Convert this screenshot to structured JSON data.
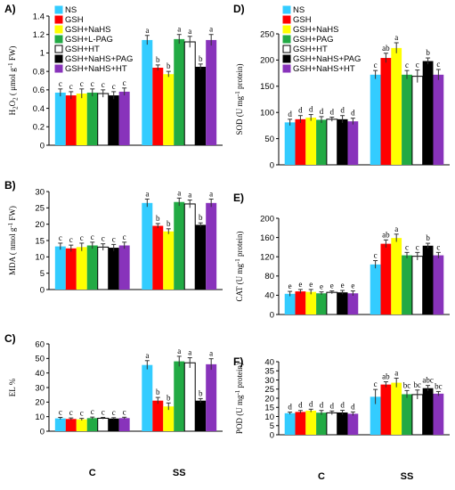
{
  "palette": [
    "#33ccff",
    "#ff0000",
    "#ffff00",
    "#22aa44",
    "#ffffff",
    "#000000",
    "#8833bb"
  ],
  "chart_data": [
    {
      "type": "bar",
      "panel": "A)",
      "ylabel_parts": [
        "H",
        "2",
        "O",
        "2",
        " ( μmol g",
        "-1",
        " FW)"
      ],
      "ylim": [
        0,
        1.4
      ],
      "yticks": [
        0,
        0.2,
        0.4,
        0.6,
        0.8,
        1,
        1.2,
        1.4
      ],
      "categories": [
        "C",
        "SS"
      ],
      "legend": [
        "NS",
        "GSH",
        "GSH+NaHS",
        "GSH+L-PAG",
        "GSH+HT",
        "GSH+NaHS+PAG",
        "GSH+NaHS+HT"
      ],
      "series": [
        {
          "name": "NS",
          "values": [
            0.57,
            1.14
          ],
          "errors": [
            0.04,
            0.05
          ],
          "labels": [
            "c",
            "a"
          ]
        },
        {
          "name": "GSH",
          "values": [
            0.54,
            0.84
          ],
          "errors": [
            0.04,
            0.03
          ],
          "labels": [
            "c",
            "b"
          ]
        },
        {
          "name": "GSH+NaHS",
          "values": [
            0.56,
            0.77
          ],
          "errors": [
            0.05,
            0.03
          ],
          "labels": [
            "c",
            "b"
          ]
        },
        {
          "name": "GSH+L-PAG",
          "values": [
            0.57,
            1.15
          ],
          "errors": [
            0.04,
            0.05
          ],
          "labels": [
            "c",
            "a"
          ]
        },
        {
          "name": "GSH+HT",
          "values": [
            0.56,
            1.12
          ],
          "errors": [
            0.04,
            0.06
          ],
          "labels": [
            "c",
            "a"
          ]
        },
        {
          "name": "GSH+NaHS+PAG",
          "values": [
            0.54,
            0.85
          ],
          "errors": [
            0.04,
            0.03
          ],
          "labels": [
            "c",
            "b"
          ]
        },
        {
          "name": "GSH+NaHS+HT",
          "values": [
            0.58,
            1.14
          ],
          "errors": [
            0.04,
            0.06
          ],
          "labels": [
            "c",
            "a"
          ]
        }
      ]
    },
    {
      "type": "bar",
      "panel": "B)",
      "ylabel_parts": [
        "MDA ( nmol g",
        "-1",
        " FW)"
      ],
      "ylim": [
        0,
        30
      ],
      "yticks": [
        0,
        5,
        10,
        15,
        20,
        25,
        30
      ],
      "categories": [
        "C",
        "SS"
      ],
      "legend": [],
      "series": [
        {
          "name": "NS",
          "values": [
            13.2,
            26.5
          ],
          "errors": [
            1.0,
            1.2
          ],
          "labels": [
            "c",
            "a"
          ]
        },
        {
          "name": "GSH",
          "values": [
            12.6,
            19.5
          ],
          "errors": [
            1.0,
            0.7
          ],
          "labels": [
            "c",
            "b"
          ]
        },
        {
          "name": "GSH+NaHS",
          "values": [
            13.0,
            17.8
          ],
          "errors": [
            1.2,
            0.8
          ],
          "labels": [
            "c",
            "b"
          ]
        },
        {
          "name": "GSH+L-PAG",
          "values": [
            13.5,
            26.8
          ],
          "errors": [
            1.0,
            1.2
          ],
          "labels": [
            "c",
            "a"
          ]
        },
        {
          "name": "GSH+HT",
          "values": [
            13.0,
            26.2
          ],
          "errors": [
            1.0,
            1.2
          ],
          "labels": [
            "c",
            "a"
          ]
        },
        {
          "name": "GSH+NaHS+PAG",
          "values": [
            12.8,
            19.8
          ],
          "errors": [
            1.0,
            0.6
          ],
          "labels": [
            "c",
            "b"
          ]
        },
        {
          "name": "GSH+NaHS+HT",
          "values": [
            13.5,
            26.5
          ],
          "errors": [
            1.0,
            1.2
          ],
          "labels": [
            "c",
            "a"
          ]
        }
      ]
    },
    {
      "type": "bar",
      "panel": "C)",
      "ylabel_parts": [
        "EL %"
      ],
      "ylim": [
        0,
        60
      ],
      "yticks": [
        0,
        10,
        20,
        30,
        40,
        50,
        60
      ],
      "categories": [
        "C",
        "SS"
      ],
      "legend": [],
      "series": [
        {
          "name": "NS",
          "values": [
            8.8,
            45.5
          ],
          "errors": [
            0.7,
            3.0
          ],
          "labels": [
            "c",
            "a"
          ]
        },
        {
          "name": "GSH",
          "values": [
            8.4,
            21.0
          ],
          "errors": [
            0.7,
            2.2
          ],
          "labels": [
            "c",
            "b"
          ]
        },
        {
          "name": "GSH+NaHS",
          "values": [
            8.1,
            17.0
          ],
          "errors": [
            0.7,
            2.4
          ],
          "labels": [
            "c",
            "b"
          ]
        },
        {
          "name": "GSH+L-PAG",
          "values": [
            9.0,
            48.0
          ],
          "errors": [
            0.7,
            3.5
          ],
          "labels": [
            "c",
            "a"
          ]
        },
        {
          "name": "GSH+HT",
          "values": [
            8.9,
            47.0
          ],
          "errors": [
            0.6,
            3.5
          ],
          "labels": [
            "c",
            "a"
          ]
        },
        {
          "name": "GSH+NaHS+PAG",
          "values": [
            8.7,
            21.0
          ],
          "errors": [
            0.6,
            1.4
          ],
          "labels": [
            "c",
            "b"
          ]
        },
        {
          "name": "GSH+NaHS+HT",
          "values": [
            9.0,
            46.0
          ],
          "errors": [
            0.6,
            3.8
          ],
          "labels": [
            "c",
            "a"
          ]
        }
      ]
    },
    {
      "type": "bar",
      "panel": "D)",
      "ylabel_parts": [
        "SOD (U mg",
        "-1",
        " protein)"
      ],
      "ylim": [
        0,
        250
      ],
      "yticks": [
        0,
        50,
        100,
        150,
        200,
        250
      ],
      "categories": [
        "C",
        "SS"
      ],
      "legend": [
        "NS",
        "GSH",
        "GSH+NaHS",
        "GSH+PAG",
        "GSH+HT",
        "GSH+NaHS+PAG",
        "GSH+NaHS+HT"
      ],
      "series": [
        {
          "name": "NS",
          "values": [
            81,
            172
          ],
          "errors": [
            6,
            8
          ],
          "labels": [
            "d",
            "c"
          ]
        },
        {
          "name": "GSH",
          "values": [
            87,
            204
          ],
          "errors": [
            7,
            9
          ],
          "labels": [
            "d",
            "ab"
          ]
        },
        {
          "name": "GSH+NaHS",
          "values": [
            90,
            223
          ],
          "errors": [
            6,
            10
          ],
          "labels": [
            "d",
            "a"
          ]
        },
        {
          "name": "GSH+PAG",
          "values": [
            86,
            172
          ],
          "errors": [
            6,
            8
          ],
          "labels": [
            "d",
            "c"
          ]
        },
        {
          "name": "GSH+HT",
          "values": [
            87,
            169
          ],
          "errors": [
            4,
            12
          ],
          "labels": [
            "d",
            "c"
          ]
        },
        {
          "name": "GSH+NaHS+PAG",
          "values": [
            87,
            198
          ],
          "errors": [
            7,
            6
          ],
          "labels": [
            "d",
            "b"
          ]
        },
        {
          "name": "GSH+NaHS+HT",
          "values": [
            83,
            172
          ],
          "errors": [
            6,
            10
          ],
          "labels": [
            "d",
            "c"
          ]
        }
      ]
    },
    {
      "type": "bar",
      "panel": "E)",
      "ylabel_parts": [
        "CAT (U mg",
        "-1",
        " protein)"
      ],
      "ylim": [
        0,
        200
      ],
      "yticks": [
        0,
        40,
        80,
        120,
        160,
        200
      ],
      "categories": [
        "C",
        "SS"
      ],
      "legend": [],
      "series": [
        {
          "name": "NS",
          "values": [
            43,
            104
          ],
          "errors": [
            5,
            8
          ],
          "labels": [
            "e",
            "c"
          ]
        },
        {
          "name": "GSH",
          "values": [
            48,
            147
          ],
          "errors": [
            4,
            8
          ],
          "labels": [
            "e",
            "ab"
          ]
        },
        {
          "name": "GSH+NaHS",
          "values": [
            47,
            159
          ],
          "errors": [
            5,
            8
          ],
          "labels": [
            "e",
            "a"
          ]
        },
        {
          "name": "GSH+PAG",
          "values": [
            44,
            123
          ],
          "errors": [
            3,
            6
          ],
          "labels": [
            "e",
            "c"
          ]
        },
        {
          "name": "GSH+HT",
          "values": [
            46,
            121
          ],
          "errors": [
            3,
            8
          ],
          "labels": [
            "e",
            "c"
          ]
        },
        {
          "name": "GSH+NaHS+PAG",
          "values": [
            46,
            143
          ],
          "errors": [
            4,
            5
          ],
          "labels": [
            "e",
            "b"
          ]
        },
        {
          "name": "GSH+NaHS+HT",
          "values": [
            44,
            123
          ],
          "errors": [
            5,
            6
          ],
          "labels": [
            "e",
            "c"
          ]
        }
      ]
    },
    {
      "type": "bar",
      "panel": "F)",
      "ylabel_parts": [
        "POD (U mg",
        "-1",
        " protein)"
      ],
      "ylim": [
        0,
        40
      ],
      "yticks": [
        0,
        5,
        10,
        15,
        20,
        25,
        30,
        35,
        40
      ],
      "categories": [
        "C",
        "SS"
      ],
      "legend": [],
      "series": [
        {
          "name": "NS",
          "values": [
            11.8,
            20.8
          ],
          "errors": [
            0.6,
            4.0
          ],
          "labels": [
            "d",
            "c"
          ]
        },
        {
          "name": "GSH",
          "values": [
            12.5,
            27.5
          ],
          "errors": [
            0.8,
            1.5
          ],
          "labels": [
            "d",
            "ab"
          ]
        },
        {
          "name": "GSH+NaHS",
          "values": [
            13.2,
            28.5
          ],
          "errors": [
            0.8,
            2.5
          ],
          "labels": [
            "d",
            "a"
          ]
        },
        {
          "name": "GSH+PAG",
          "values": [
            12.1,
            22.2
          ],
          "errors": [
            1.2,
            2.0
          ],
          "labels": [
            "d",
            "bc"
          ]
        },
        {
          "name": "GSH+HT",
          "values": [
            12.0,
            22.0
          ],
          "errors": [
            1.0,
            2.5
          ],
          "labels": [
            "d",
            "bc"
          ]
        },
        {
          "name": "GSH+NaHS+PAG",
          "values": [
            12.2,
            25.5
          ],
          "errors": [
            1.2,
            1.5
          ],
          "labels": [
            "d",
            "abc"
          ]
        },
        {
          "name": "GSH+NaHS+HT",
          "values": [
            11.5,
            22.5
          ],
          "errors": [
            1.0,
            1.2
          ],
          "labels": [
            "d",
            "bc"
          ]
        }
      ]
    }
  ]
}
